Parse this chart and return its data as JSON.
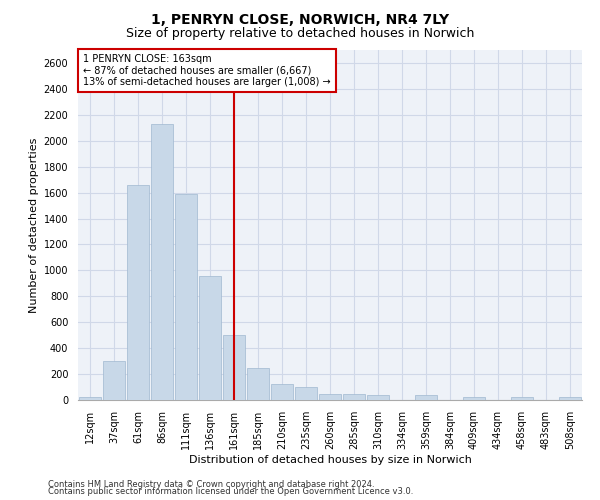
{
  "title_line1": "1, PENRYN CLOSE, NORWICH, NR4 7LY",
  "title_line2": "Size of property relative to detached houses in Norwich",
  "xlabel": "Distribution of detached houses by size in Norwich",
  "ylabel": "Number of detached properties",
  "footer_line1": "Contains HM Land Registry data © Crown copyright and database right 2024.",
  "footer_line2": "Contains public sector information licensed under the Open Government Licence v3.0.",
  "bar_labels": [
    "12sqm",
    "37sqm",
    "61sqm",
    "86sqm",
    "111sqm",
    "136sqm",
    "161sqm",
    "185sqm",
    "210sqm",
    "235sqm",
    "260sqm",
    "285sqm",
    "310sqm",
    "334sqm",
    "359sqm",
    "384sqm",
    "409sqm",
    "434sqm",
    "458sqm",
    "483sqm",
    "508sqm"
  ],
  "bar_values": [
    25,
    300,
    1660,
    2130,
    1590,
    960,
    500,
    250,
    125,
    100,
    50,
    50,
    35,
    0,
    35,
    0,
    20,
    0,
    20,
    0,
    25
  ],
  "bar_color": "#c8d8e8",
  "bar_edgecolor": "#a0b8d0",
  "vline_index": 6,
  "vline_color": "#cc0000",
  "annotation_text": "1 PENRYN CLOSE: 163sqm\n← 87% of detached houses are smaller (6,667)\n13% of semi-detached houses are larger (1,008) →",
  "annotation_box_color": "#ffffff",
  "annotation_box_edgecolor": "#cc0000",
  "ylim": [
    0,
    2700
  ],
  "yticks": [
    0,
    200,
    400,
    600,
    800,
    1000,
    1200,
    1400,
    1600,
    1800,
    2000,
    2200,
    2400,
    2600
  ],
  "grid_color": "#d0d8e8",
  "plot_background": "#eef2f8",
  "title_fontsize": 10,
  "subtitle_fontsize": 9,
  "xlabel_fontsize": 8,
  "ylabel_fontsize": 8,
  "tick_fontsize": 7,
  "annotation_fontsize": 7,
  "footer_fontsize": 6
}
